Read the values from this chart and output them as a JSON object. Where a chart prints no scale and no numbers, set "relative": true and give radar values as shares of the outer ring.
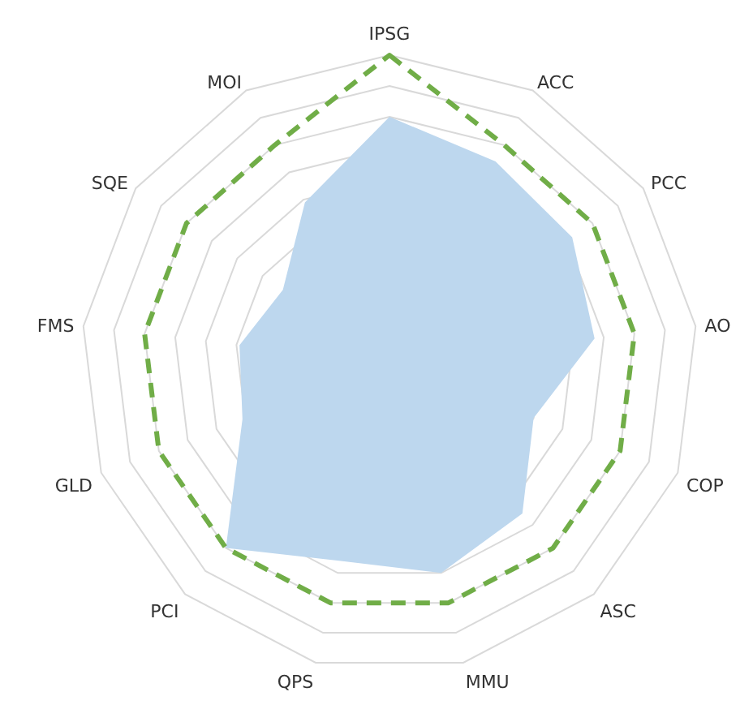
{
  "chart_data": {
    "type": "radar",
    "relative": true,
    "grid": true,
    "categories": [
      "IPSG",
      "ACC",
      "PCC",
      "AO",
      "COP",
      "ASC",
      "MMU",
      "QPS",
      "PCI",
      "GLD",
      "FMS",
      "SQE",
      "MOI"
    ],
    "series": [
      {
        "type": "area",
        "color": "#bdd7ee",
        "values": [
          0.8,
          0.74,
          0.72,
          0.67,
          0.5,
          0.65,
          0.7,
          0.66,
          0.8,
          0.51,
          0.49,
          0.42,
          0.59
        ]
      },
      {
        "color": "#70ad47",
        "line_style": "dashed",
        "values": [
          1,
          0.8,
          0.8,
          0.8,
          0.8,
          0.8,
          0.8,
          0.8,
          0.8,
          0.8,
          0.8,
          0.8,
          0.8
        ]
      }
    ]
  }
}
